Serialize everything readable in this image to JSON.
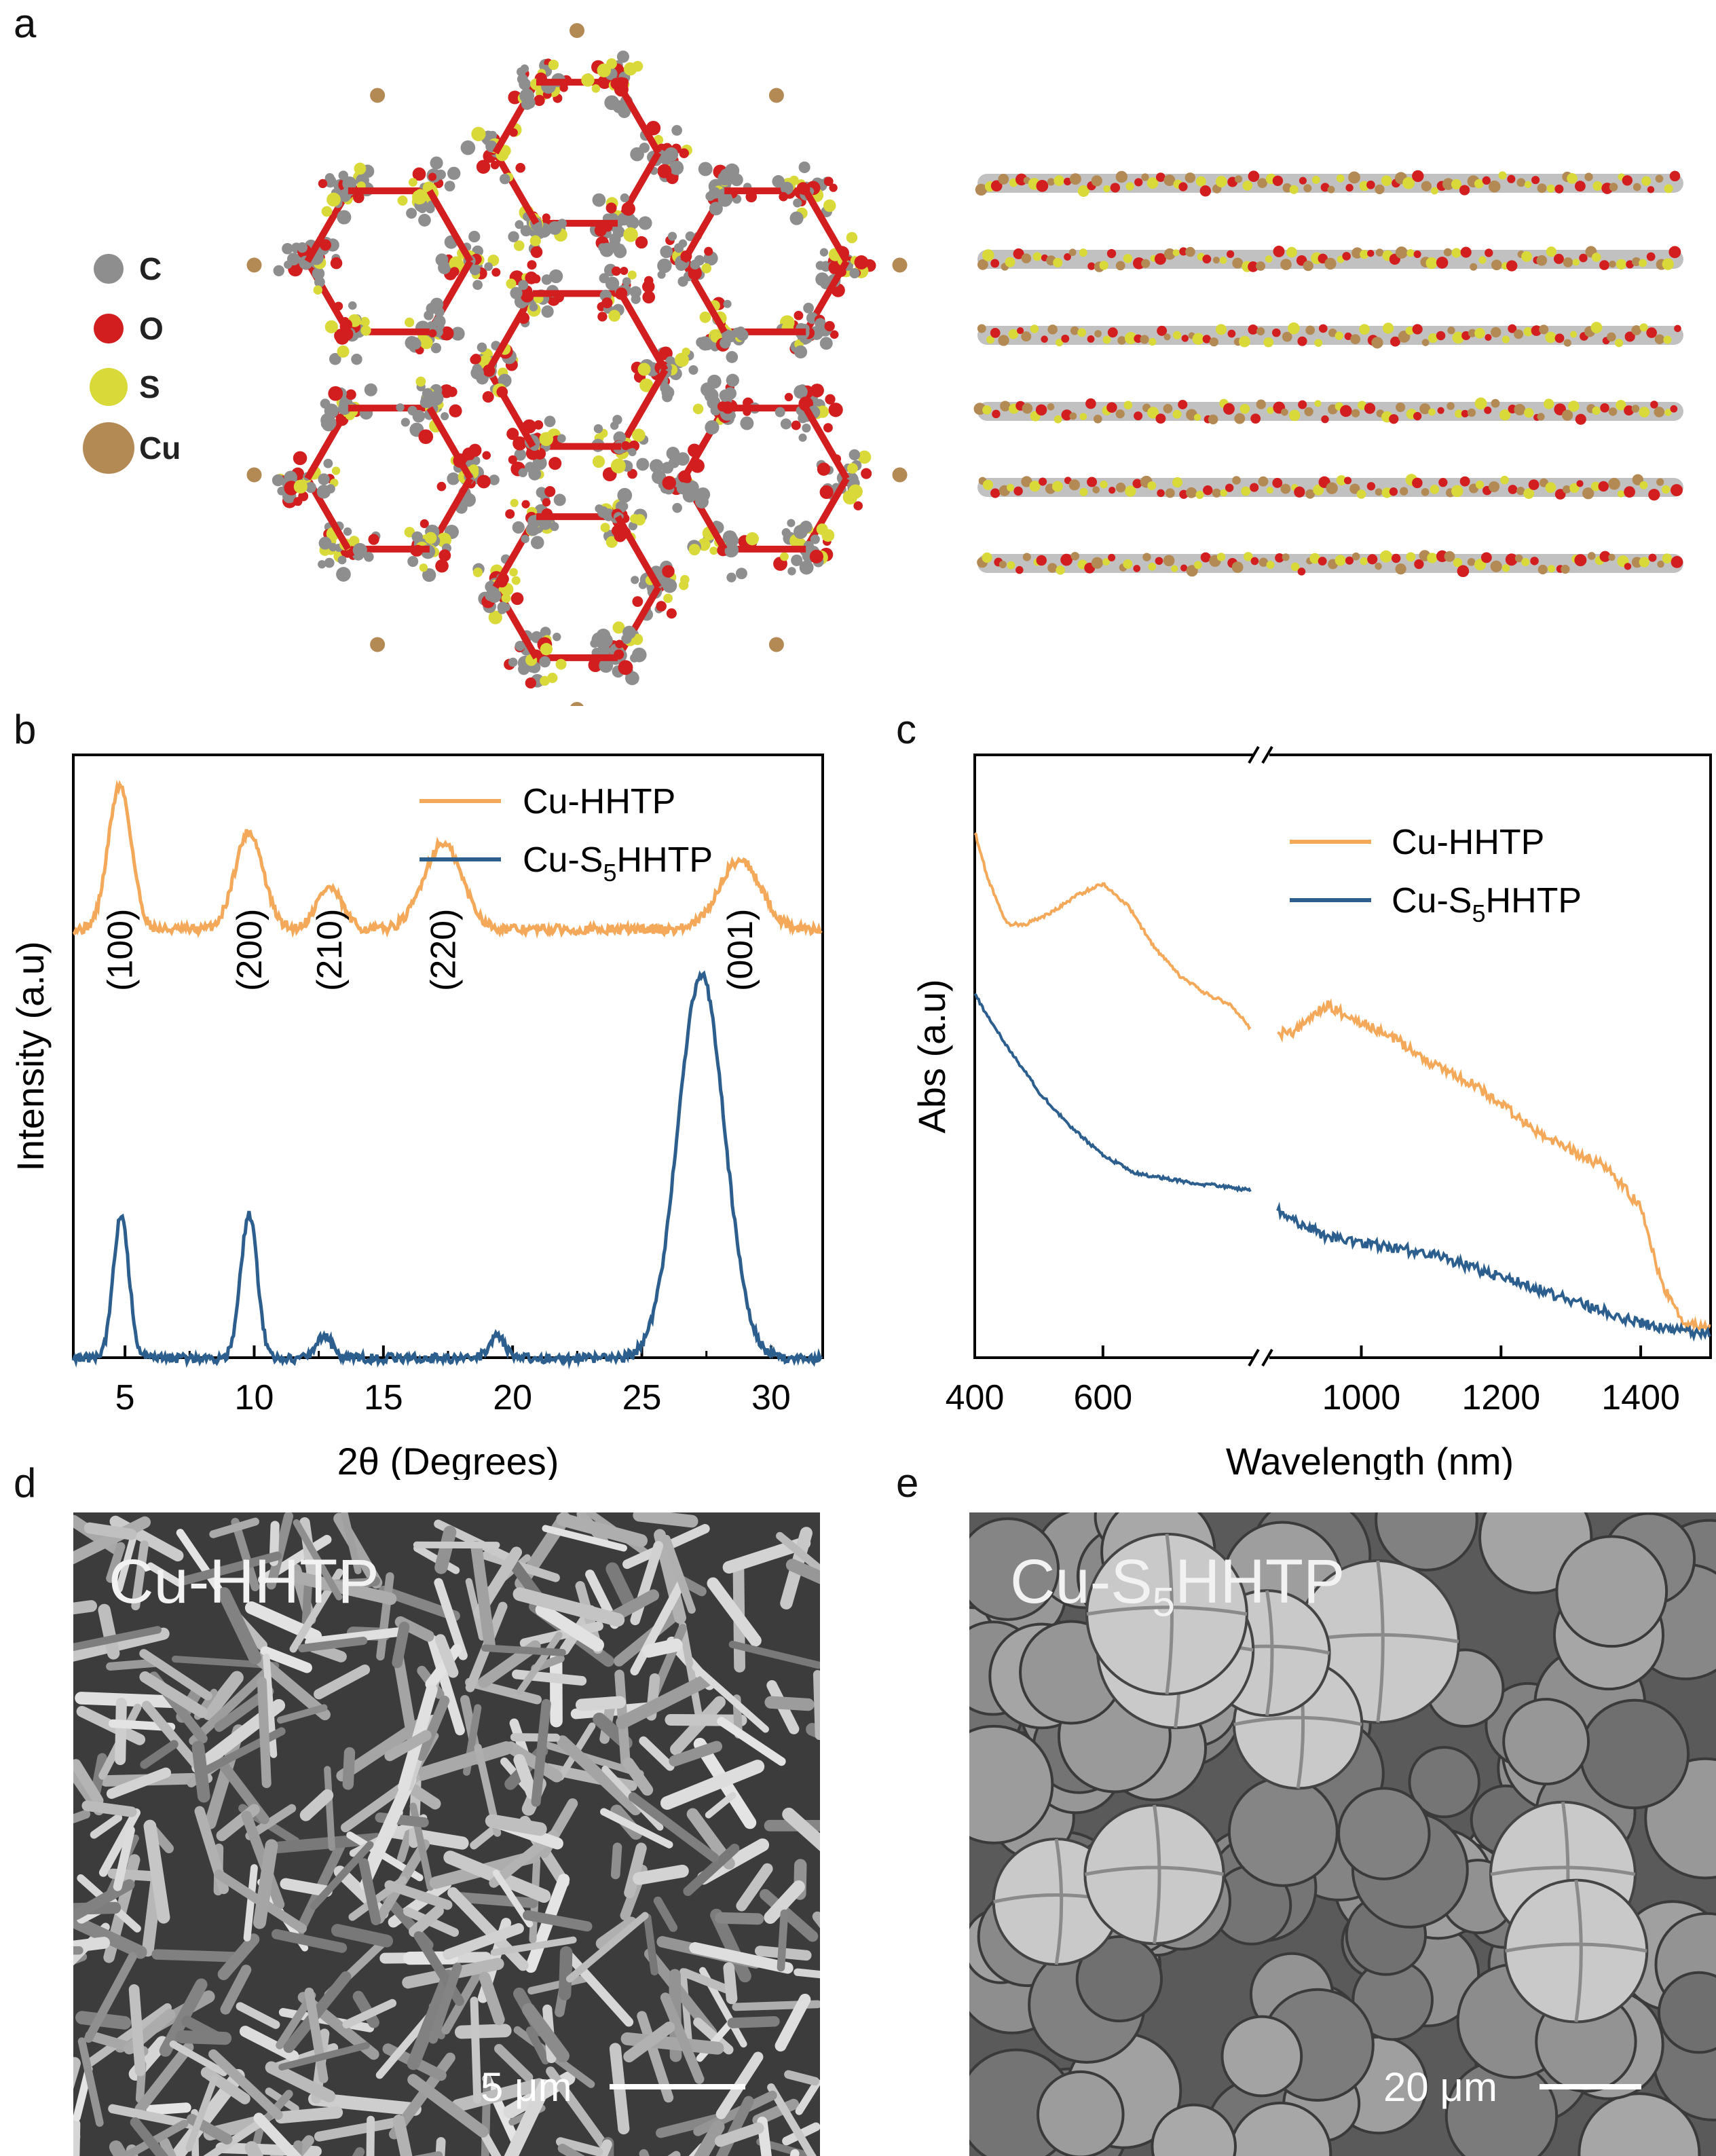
{
  "panels": {
    "a": "a",
    "b": "b",
    "c": "c",
    "d": "d",
    "e": "e"
  },
  "legend_atoms": [
    {
      "symbol": "C",
      "color": "#8e8e8e"
    },
    {
      "symbol": "O",
      "color": "#d21e1e"
    },
    {
      "symbol": "S",
      "color": "#d9d93a"
    },
    {
      "symbol": "Cu",
      "color": "#b48a54"
    }
  ],
  "chart_data": [
    {
      "type": "line",
      "panel": "b",
      "xlabel": "2θ (Degrees)",
      "ylabel": "Intensity (a.u)",
      "xlim": [
        3,
        32
      ],
      "xticks": [
        5,
        10,
        15,
        20,
        25,
        30
      ],
      "legend_position": "top-right",
      "peak_labels": [
        {
          "text": "(100)",
          "x": 4.8
        },
        {
          "text": "(200)",
          "x": 9.8
        },
        {
          "text": "(210)",
          "x": 12.9
        },
        {
          "text": "(220)",
          "x": 17.3
        },
        {
          "text": "(001)",
          "x": 28.8
        }
      ],
      "series": [
        {
          "name": "Cu-HHTP",
          "color": "#f4a95a",
          "offset": 1.9,
          "peaks": [
            [
              4.8,
              0.62,
              0.45
            ],
            [
              9.8,
              0.42,
              0.55
            ],
            [
              12.9,
              0.18,
              0.5
            ],
            [
              17.3,
              0.37,
              0.75
            ],
            [
              28.8,
              0.3,
              0.8
            ]
          ]
        },
        {
          "name": "Cu-S5HHTP",
          "name_base": "Cu-S",
          "name_sub": "5",
          "name_tail": "HHTP",
          "color": "#2d5f8e",
          "offset": 0.05,
          "peaks": [
            [
              4.85,
              0.62,
              0.3
            ],
            [
              9.8,
              0.62,
              0.32
            ],
            [
              12.7,
              0.1,
              0.3
            ],
            [
              19.4,
              0.1,
              0.3
            ],
            [
              27.3,
              1.65,
              0.9
            ]
          ]
        }
      ]
    },
    {
      "type": "line",
      "panel": "c",
      "xlabel": "Wavelength (nm)",
      "ylabel": "Abs (a.u)",
      "axis_break": true,
      "xticks": [
        400,
        600,
        1000,
        1200,
        1400
      ],
      "legend_position": "top-right",
      "series": [
        {
          "name": "Cu-HHTP",
          "color": "#f4a95a",
          "x": [
            400,
            420,
            450,
            480,
            520,
            560,
            600,
            640,
            680,
            720,
            760,
            800,
            830,
            900,
            950,
            1000,
            1050,
            1100,
            1150,
            1200,
            1250,
            1300,
            1350,
            1400,
            1430,
            1460,
            1500
          ],
          "y": [
            0.9,
            0.82,
            0.74,
            0.74,
            0.76,
            0.79,
            0.81,
            0.77,
            0.7,
            0.65,
            0.62,
            0.6,
            0.56,
            0.55,
            0.6,
            0.57,
            0.54,
            0.5,
            0.47,
            0.43,
            0.38,
            0.35,
            0.32,
            0.25,
            0.12,
            0.05,
            0.04
          ]
        },
        {
          "name": "Cu-S5HHTP",
          "name_base": "Cu-S",
          "name_sub": "5",
          "name_tail": "HHTP",
          "color": "#2d5f8e",
          "x": [
            400,
            420,
            450,
            500,
            550,
            600,
            650,
            700,
            760,
            830,
            900,
            950,
            1000,
            1050,
            1100,
            1150,
            1200,
            1250,
            1300,
            1350,
            1400,
            1450,
            1500
          ],
          "y": [
            0.62,
            0.58,
            0.53,
            0.45,
            0.39,
            0.34,
            0.31,
            0.3,
            0.29,
            0.28,
            0.23,
            0.2,
            0.19,
            0.18,
            0.17,
            0.15,
            0.13,
            0.11,
            0.09,
            0.07,
            0.05,
            0.04,
            0.03
          ]
        }
      ]
    }
  ],
  "sem": {
    "d": {
      "label": "Cu-HHTP",
      "scale": "5 μm"
    },
    "e": {
      "label_base": "Cu-S",
      "label_sub": "5",
      "label_tail": "HHTP",
      "scale": "20 μm"
    }
  }
}
